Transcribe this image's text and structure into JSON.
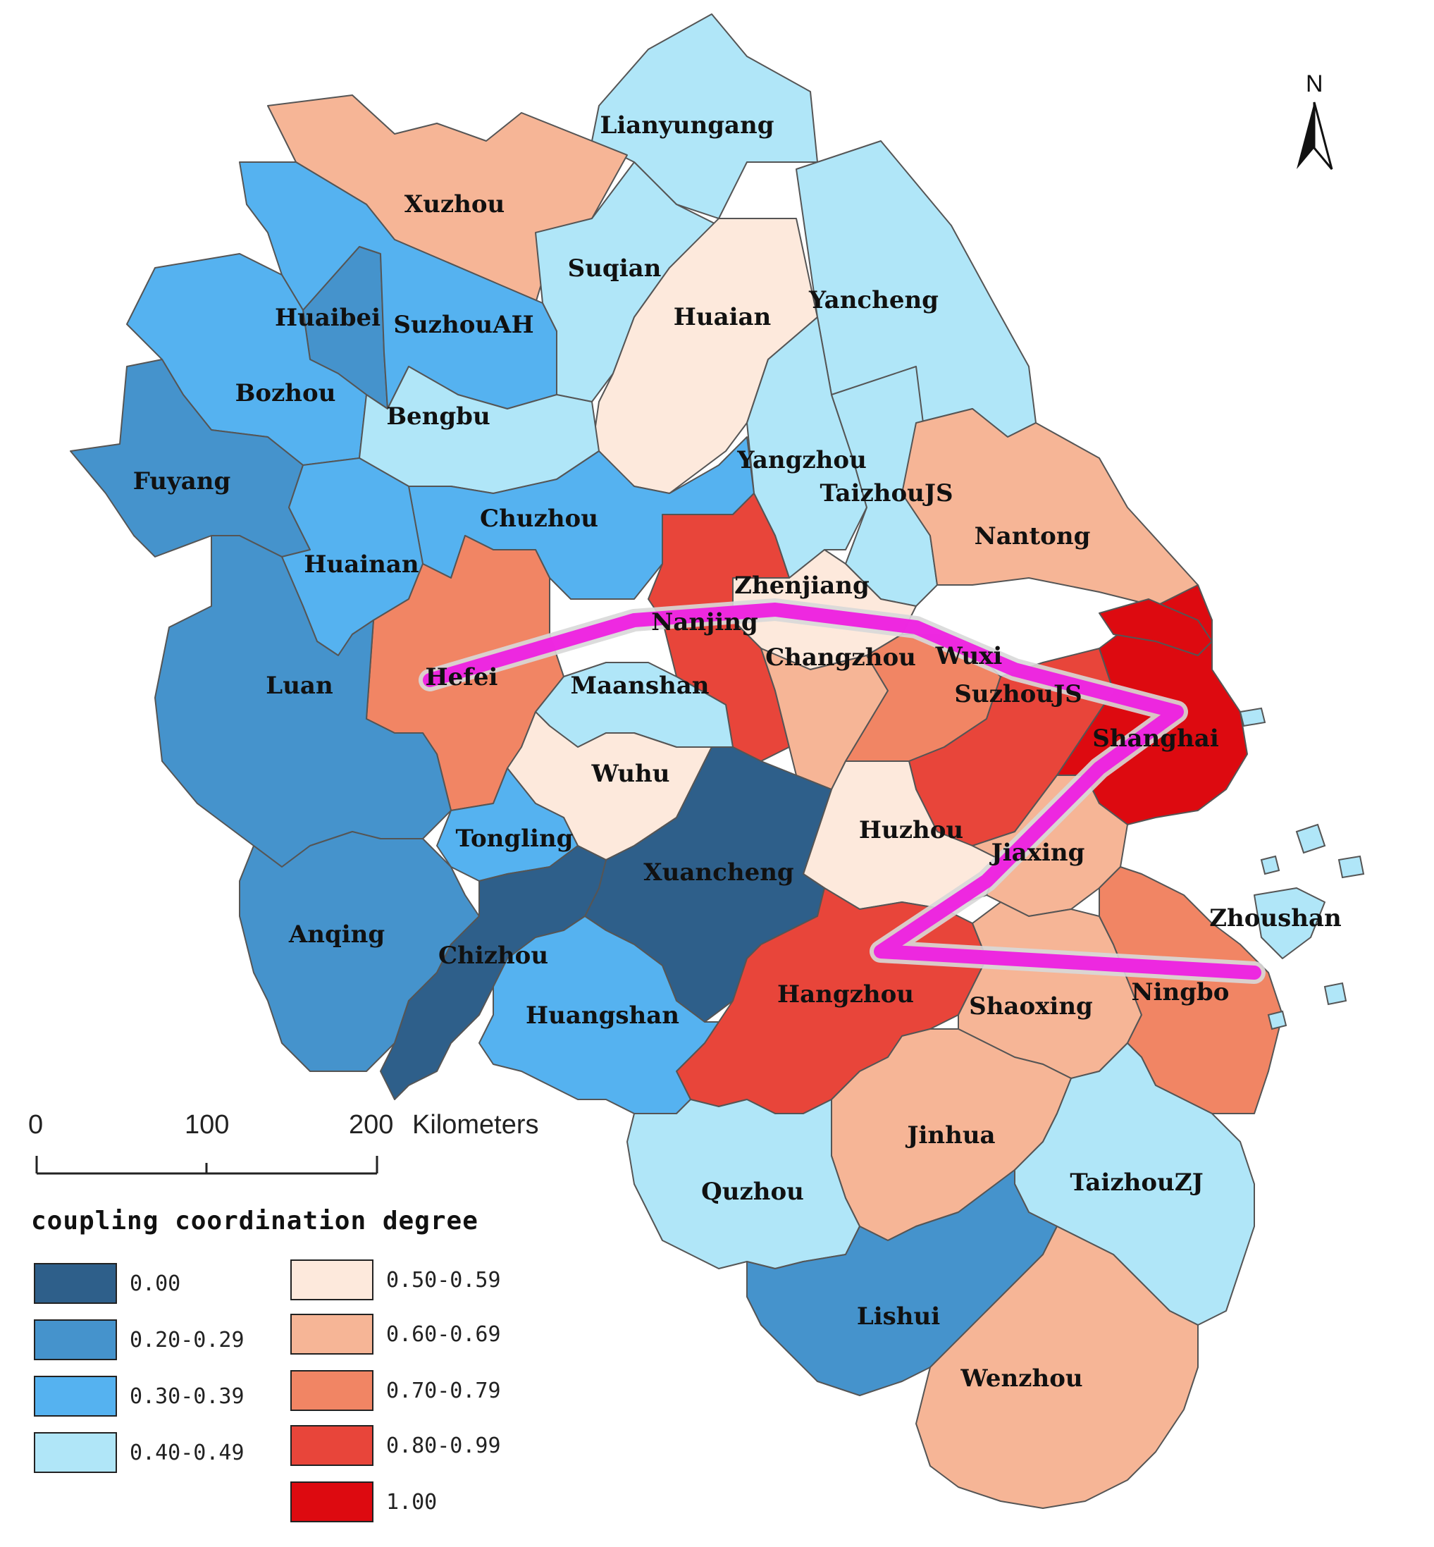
{
  "map": {
    "north_label": "N",
    "scale": {
      "ticks": [
        "0",
        "100",
        "200"
      ],
      "unit": "Kilometers"
    },
    "legend": {
      "title": "coupling coordination degree",
      "items": [
        {
          "label": "0.00",
          "color": "#2e5f8a"
        },
        {
          "label": "0.20-0.29",
          "color": "#4593cc"
        },
        {
          "label": "0.30-0.39",
          "color": "#55b2f0"
        },
        {
          "label": "0.40-0.49",
          "color": "#b0e6f8"
        },
        {
          "label": "0.50-0.59",
          "color": "#fde9dc"
        },
        {
          "label": "0.60-0.69",
          "color": "#f6b596"
        },
        {
          "label": "0.70-0.79",
          "color": "#f18564"
        },
        {
          "label": "0.80-0.99",
          "color": "#e8453a"
        },
        {
          "label": "1.00",
          "color": "#dd0a10"
        }
      ]
    },
    "cities": [
      {
        "name": "Lianyungang",
        "class": "0.40-0.49"
      },
      {
        "name": "Xuzhou",
        "class": "0.60-0.69"
      },
      {
        "name": "Suqian",
        "class": "0.40-0.49"
      },
      {
        "name": "Huaian",
        "class": "0.50-0.59"
      },
      {
        "name": "Yancheng",
        "class": "0.40-0.49"
      },
      {
        "name": "Huaibei",
        "class": "0.20-0.29"
      },
      {
        "name": "SuzhouAH",
        "class": "0.30-0.39"
      },
      {
        "name": "Bozhou",
        "class": "0.30-0.39"
      },
      {
        "name": "Bengbu",
        "class": "0.40-0.49"
      },
      {
        "name": "Fuyang",
        "class": "0.20-0.29"
      },
      {
        "name": "Yangzhou",
        "class": "0.40-0.49"
      },
      {
        "name": "TaizhouJS",
        "class": "0.40-0.49"
      },
      {
        "name": "Chuzhou",
        "class": "0.30-0.39"
      },
      {
        "name": "Huainan",
        "class": "0.30-0.39"
      },
      {
        "name": "Nantong",
        "class": "0.60-0.69"
      },
      {
        "name": "Zhenjiang",
        "class": "0.50-0.59"
      },
      {
        "name": "Nanjing",
        "class": "0.80-0.99"
      },
      {
        "name": "Changzhou",
        "class": "0.60-0.69"
      },
      {
        "name": "Wuxi",
        "class": "0.70-0.79"
      },
      {
        "name": "Hefei",
        "class": "0.70-0.79"
      },
      {
        "name": "Luan",
        "class": "0.20-0.29"
      },
      {
        "name": "Maanshan",
        "class": "0.40-0.49"
      },
      {
        "name": "SuzhouJS",
        "class": "0.80-0.99"
      },
      {
        "name": "Shanghai",
        "class": "1.00"
      },
      {
        "name": "Wuhu",
        "class": "0.50-0.59"
      },
      {
        "name": "Huzhou",
        "class": "0.50-0.59"
      },
      {
        "name": "Tongling",
        "class": "0.30-0.39"
      },
      {
        "name": "Jiaxing",
        "class": "0.60-0.69"
      },
      {
        "name": "Xuancheng",
        "class": "0.00"
      },
      {
        "name": "Zhoushan",
        "class": "0.40-0.49"
      },
      {
        "name": "Anqing",
        "class": "0.20-0.29"
      },
      {
        "name": "Chizhou",
        "class": "0.00"
      },
      {
        "name": "Hangzhou",
        "class": "0.80-0.99"
      },
      {
        "name": "Shaoxing",
        "class": "0.60-0.69"
      },
      {
        "name": "Ningbo",
        "class": "0.70-0.79"
      },
      {
        "name": "Huangshan",
        "class": "0.30-0.39"
      },
      {
        "name": "Jinhua",
        "class": "0.60-0.69"
      },
      {
        "name": "Quzhou",
        "class": "0.40-0.49"
      },
      {
        "name": "TaizhouZJ",
        "class": "0.40-0.49"
      },
      {
        "name": "Lishui",
        "class": "0.20-0.29"
      },
      {
        "name": "Wenzhou",
        "class": "0.60-0.69"
      }
    ],
    "overlay": {
      "color": "#ee1fe0",
      "outline": "#d8d8d8"
    }
  }
}
